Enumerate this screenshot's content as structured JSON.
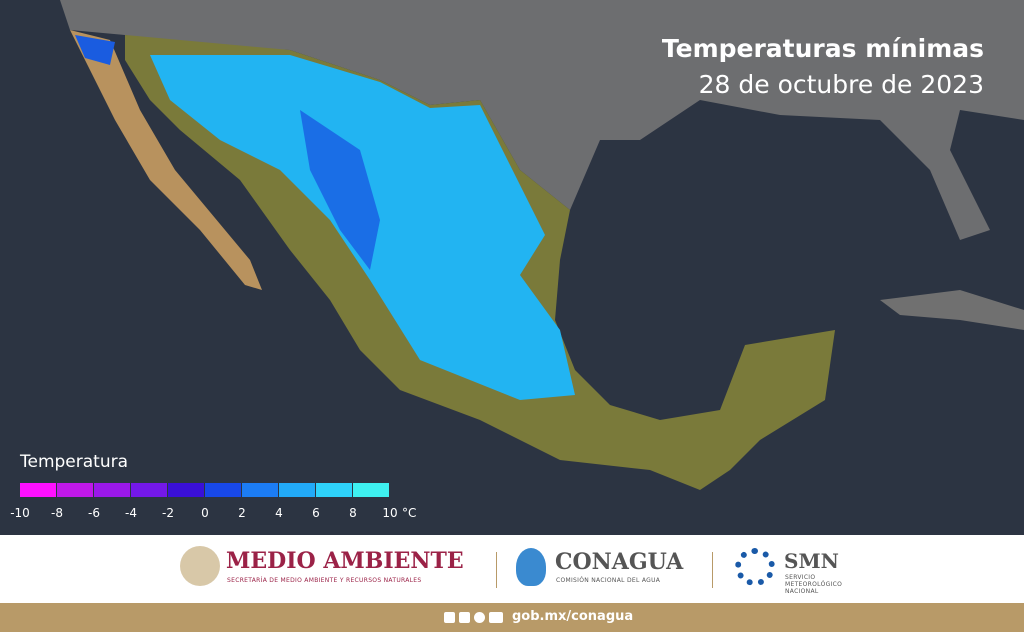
{
  "header": {
    "title": "Temperaturas mínimas",
    "subtitle": "28 de octubre de 2023"
  },
  "legend": {
    "title": "Temperatura",
    "ticks": [
      -10,
      -8,
      -6,
      -4,
      -2,
      0,
      2,
      4,
      6,
      8,
      10
    ],
    "unit": "°C",
    "colors": [
      "#ff10ff",
      "#c018e8",
      "#9a18e8",
      "#7418e8",
      "#3a10d8",
      "#1848e8",
      "#1c7cf4",
      "#22aaf8",
      "#2ed2fa",
      "#3ef0f0"
    ]
  },
  "footer": {
    "logos": [
      {
        "name": "MEDIO AMBIENTE",
        "subtitle": "SECRETARÍA DE MEDIO AMBIENTE Y RECURSOS NATURALES"
      },
      {
        "name": "CONAGUA",
        "subtitle": "COMISIÓN NACIONAL DEL AGUA"
      },
      {
        "name": "SMN",
        "subtitle": [
          "SERVICIO",
          "METEOROLÓGICO",
          "NACIONAL"
        ]
      }
    ],
    "link": "gob.mx/conagua"
  }
}
